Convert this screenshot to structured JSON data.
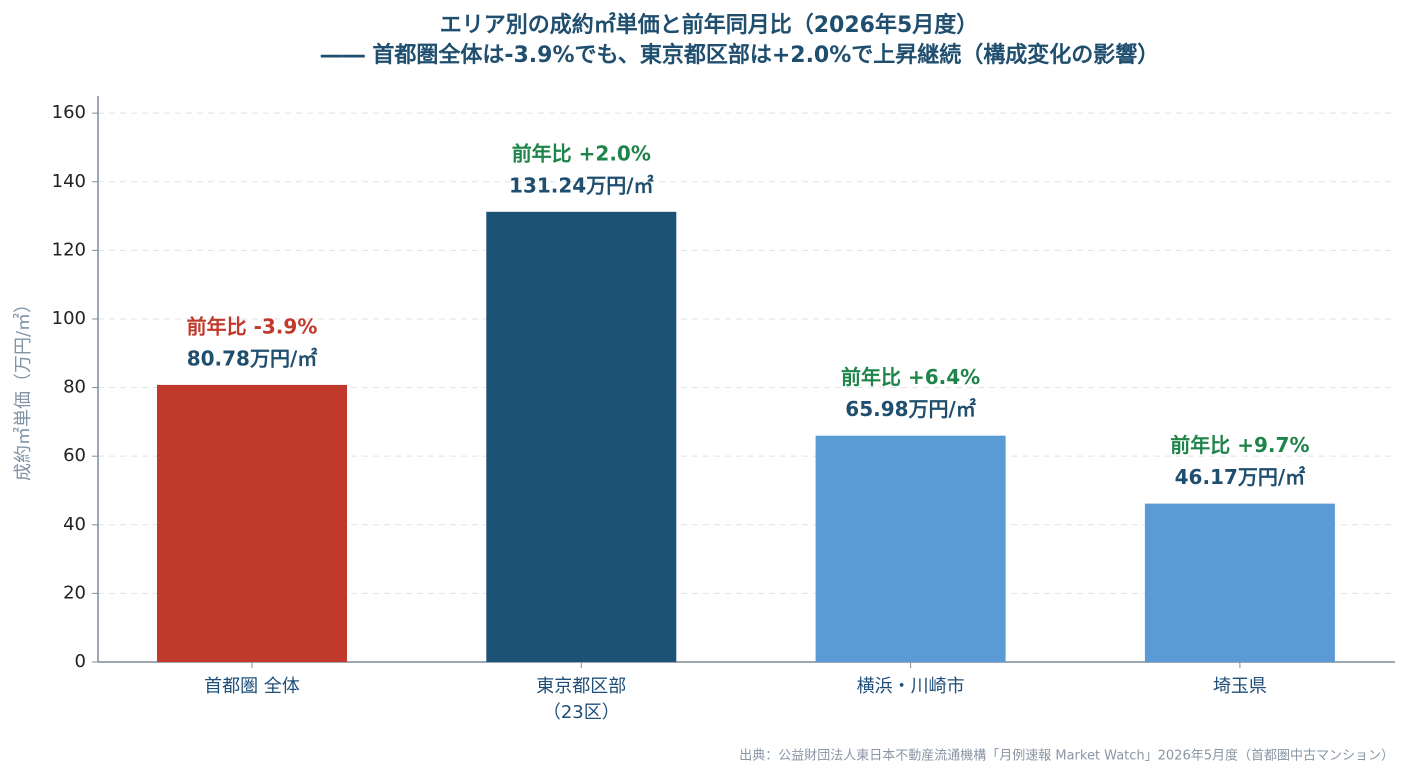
{
  "chart_data": {
    "type": "bar",
    "title": "エリア別の成約㎡単価と前年同月比（2026年5月度）",
    "subtitle": "―― 首都圏全体は-3.9%でも、東京都区部は+2.0%で上昇継続（構成変化の影響）",
    "ylabel": "成約㎡単価（万円/㎡）",
    "categories": [
      "首都圏 全体",
      "東京都区部\n（23区）",
      "横浜・川崎市",
      "埼玉県"
    ],
    "values": [
      80.78,
      131.24,
      65.98,
      46.17
    ],
    "value_labels": [
      "80.78万円/㎡",
      "131.24万円/㎡",
      "65.98万円/㎡",
      "46.17万円/㎡"
    ],
    "colors": [
      "#c0392b",
      "#1b5276",
      "#5b9bd5",
      "#5b9bd5"
    ],
    "annotations": [
      "前年比 -3.9%",
      "前年比 +2.0%",
      "前年比 +6.4%",
      "前年比 +9.7%"
    ],
    "annotation_colors": [
      "#c0392b",
      "#1e8449",
      "#1e8449",
      "#1e8449"
    ],
    "ylim": [
      0,
      165
    ],
    "yticks": [
      0,
      20,
      40,
      60,
      80,
      100,
      120,
      140,
      160
    ],
    "grid": true,
    "source": "出典：公益財団法人東日本不動産流通機構「月例速報 Market Watch」2026年5月度（首都圏中古マンション）"
  }
}
